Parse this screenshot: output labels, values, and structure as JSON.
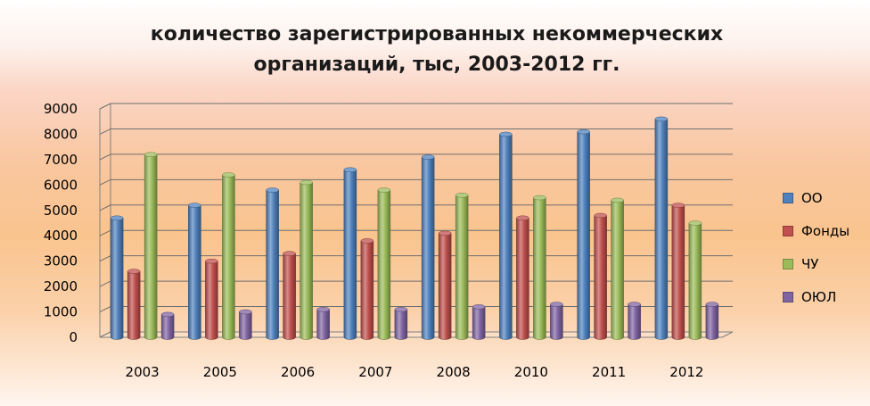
{
  "chart_data": {
    "type": "bar",
    "title": "количество зарегистрированных некоммерческих\nорганизаций, тыс, 2003-2012 гг.",
    "categories": [
      "2003",
      "2005",
      "2006",
      "2007",
      "2008",
      "2010",
      "2011",
      "2012"
    ],
    "series": [
      {
        "name": "ОО",
        "color": "#4f81bd",
        "values": [
          4700,
          5200,
          5800,
          6600,
          7100,
          8000,
          8100,
          8600
        ]
      },
      {
        "name": "Фонды",
        "color": "#c0504d",
        "values": [
          2600,
          3000,
          3300,
          3800,
          4100,
          4700,
          4800,
          5200
        ]
      },
      {
        "name": "ЧУ",
        "color": "#9bbb59",
        "values": [
          7200,
          6400,
          6100,
          5800,
          5600,
          5500,
          5400,
          4500
        ]
      },
      {
        "name": "ОЮЛ",
        "color": "#8064a2",
        "values": [
          900,
          1000,
          1100,
          1100,
          1200,
          1300,
          1300,
          1300
        ]
      }
    ],
    "ylim": [
      0,
      9000
    ],
    "yticks": [
      0,
      1000,
      2000,
      3000,
      4000,
      5000,
      6000,
      7000,
      8000,
      9000
    ],
    "grid": true,
    "legend_position": "right",
    "style": "3d-cylinder"
  }
}
